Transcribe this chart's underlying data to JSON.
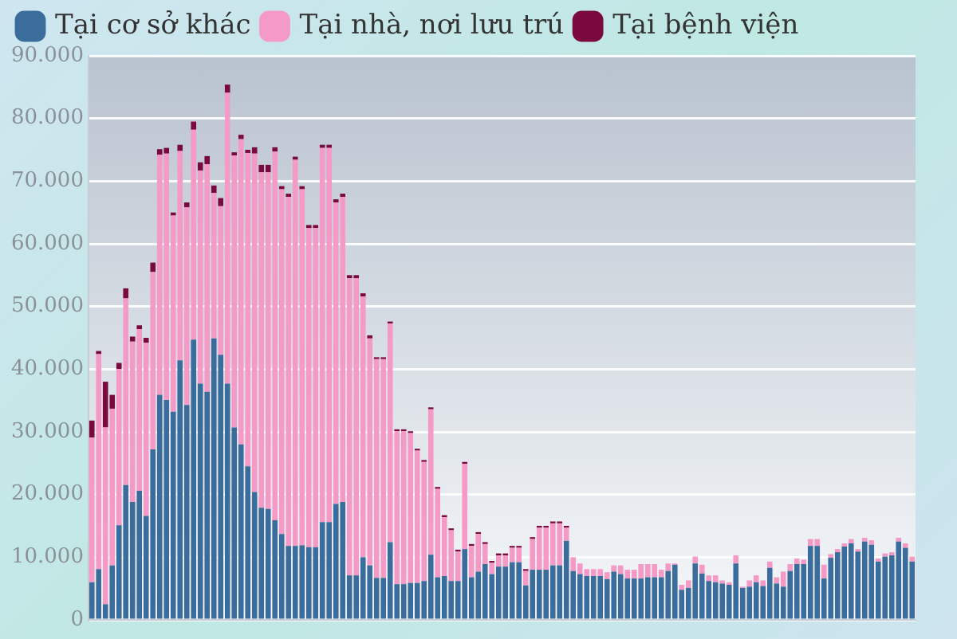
{
  "chart_data": {
    "type": "bar",
    "stacked": true,
    "categories": [
      null,
      null,
      null,
      null,
      null,
      null,
      null,
      null,
      null,
      null,
      null,
      null,
      null,
      null,
      null,
      null,
      null,
      null,
      null,
      null,
      null,
      null,
      null,
      null,
      null,
      null,
      null,
      null,
      null,
      null,
      null,
      null,
      null,
      null,
      null,
      null,
      null,
      null,
      null,
      null,
      null,
      null,
      null,
      null,
      null,
      null,
      null,
      null,
      null,
      null,
      null,
      null,
      null,
      null,
      null,
      null,
      null,
      null,
      null,
      null,
      null,
      null,
      null,
      null,
      null,
      null,
      null,
      null,
      null,
      null,
      null,
      null,
      null,
      null,
      null,
      null,
      null,
      null,
      null,
      null,
      null,
      null,
      null,
      null,
      null,
      null,
      null,
      null,
      null,
      null,
      null,
      null,
      null,
      null,
      null,
      null,
      null,
      null,
      null,
      null,
      null,
      null,
      null,
      null,
      null,
      null,
      null,
      null,
      null,
      null,
      null,
      null,
      null,
      null,
      null,
      null,
      null,
      null,
      null,
      null,
      null,
      null
    ],
    "series": [
      {
        "name": "Tại cơ sở khác",
        "color": "#3a6c9c",
        "values": [
          6000,
          8100,
          2500,
          8700,
          15100,
          21500,
          18800,
          20600,
          16600,
          27200,
          35900,
          35100,
          33200,
          41400,
          34300,
          44700,
          37700,
          36400,
          44900,
          42300,
          37700,
          30700,
          28000,
          24500,
          20400,
          17900,
          17700,
          15900,
          13700,
          11800,
          11800,
          11900,
          11600,
          11600,
          15600,
          15600,
          18500,
          18800,
          7100,
          7100,
          10000,
          8700,
          6700,
          6700,
          12400,
          5700,
          5700,
          5900,
          5900,
          6200,
          10400,
          6800,
          7000,
          6200,
          6200,
          11300,
          6800,
          7700,
          8900,
          7300,
          8500,
          8500,
          9200,
          9200,
          5500,
          8000,
          8000,
          8000,
          8700,
          8700,
          12600,
          7800,
          7300,
          7000,
          7000,
          7000,
          6500,
          7700,
          7300,
          6600,
          6600,
          6600,
          6800,
          6800,
          6800,
          7800,
          8800,
          4800,
          5100,
          9000,
          7400,
          6200,
          6000,
          5800,
          5600,
          9000,
          5100,
          5300,
          6000,
          5400,
          8300,
          5800,
          5300,
          7800,
          8900,
          8900,
          11800,
          11800,
          6600,
          9900,
          10800,
          11700,
          12200,
          10900,
          12500,
          12000,
          9300,
          10100,
          10300,
          12500,
          11500,
          9300
        ]
      },
      {
        "name": "Tại nhà, nơi lưu trú",
        "color": "#f59ac6",
        "values": [
          23100,
          34300,
          28200,
          25000,
          24900,
          29800,
          25600,
          25800,
          27600,
          28300,
          38300,
          39300,
          31300,
          33400,
          31500,
          33500,
          34000,
          36300,
          23200,
          23700,
          46400,
          43400,
          48700,
          50000,
          54000,
          53500,
          53700,
          58800,
          55000,
          55700,
          61600,
          56800,
          50900,
          50900,
          59700,
          59700,
          48100,
          48700,
          47400,
          47400,
          41600,
          36200,
          34900,
          34900,
          34900,
          24400,
          24400,
          23900,
          21100,
          19000,
          23200,
          14100,
          9400,
          8100,
          4700,
          13600,
          5000,
          6000,
          3200,
          1800,
          1800,
          1800,
          2300,
          2300,
          2300,
          4900,
          6700,
          6700,
          6700,
          6700,
          2100,
          2200,
          1700,
          1100,
          1100,
          1100,
          1100,
          1000,
          1400,
          1400,
          1400,
          2300,
          2100,
          2100,
          1200,
          1200,
          200,
          800,
          1200,
          1100,
          1400,
          900,
          1100,
          500,
          400,
          1300,
          200,
          1000,
          1100,
          900,
          1000,
          1000,
          2400,
          1100,
          900,
          700,
          1100,
          1100,
          2200,
          600,
          500,
          500,
          700,
          400,
          600,
          700,
          500,
          500,
          500,
          600,
          700,
          800
        ]
      },
      {
        "name": "Tại bệnh viện",
        "color": "#7a0a3e",
        "values": [
          2700,
          500,
          7300,
          2200,
          1000,
          1600,
          800,
          600,
          800,
          1500,
          900,
          900,
          500,
          1000,
          800,
          1300,
          1300,
          1300,
          1200,
          1300,
          1300,
          500,
          700,
          500,
          1000,
          1200,
          1200,
          700,
          500,
          500,
          500,
          500,
          500,
          500,
          500,
          500,
          500,
          500,
          500,
          500,
          500,
          500,
          300,
          300,
          300,
          300,
          300,
          300,
          300,
          300,
          300,
          300,
          300,
          300,
          300,
          300,
          300,
          300,
          300,
          300,
          300,
          300,
          300,
          300,
          300,
          300,
          300,
          300,
          300,
          300,
          300,
          0,
          0,
          0,
          0,
          0,
          0,
          0,
          0,
          0,
          0,
          0,
          0,
          0,
          0,
          0,
          0,
          0,
          0,
          0,
          0,
          0,
          0,
          0,
          0,
          0,
          0,
          0,
          0,
          0,
          0,
          0,
          0,
          0,
          0,
          0,
          0,
          0,
          0,
          0,
          0,
          0,
          0,
          0,
          0,
          0,
          0,
          0,
          0,
          0,
          0,
          0
        ]
      }
    ],
    "ylim": [
      0,
      90000
    ],
    "yticks": [
      0,
      {
        "value": 10000,
        "label": "10.000"
      },
      {
        "value": 20000,
        "label": "20.000"
      },
      {
        "value": 30000,
        "label": "30.000"
      },
      {
        "value": 40000,
        "label": "40.000"
      },
      {
        "value": 50000,
        "label": "50.000"
      },
      {
        "value": 60000,
        "label": "60.000"
      },
      {
        "value": 70000,
        "label": "70.000"
      },
      {
        "value": 80000,
        "label": "80.000"
      },
      {
        "value": 90000,
        "label": "90.000"
      }
    ],
    "tick_labels": "y",
    "grid": "y",
    "legend": "top left"
  }
}
